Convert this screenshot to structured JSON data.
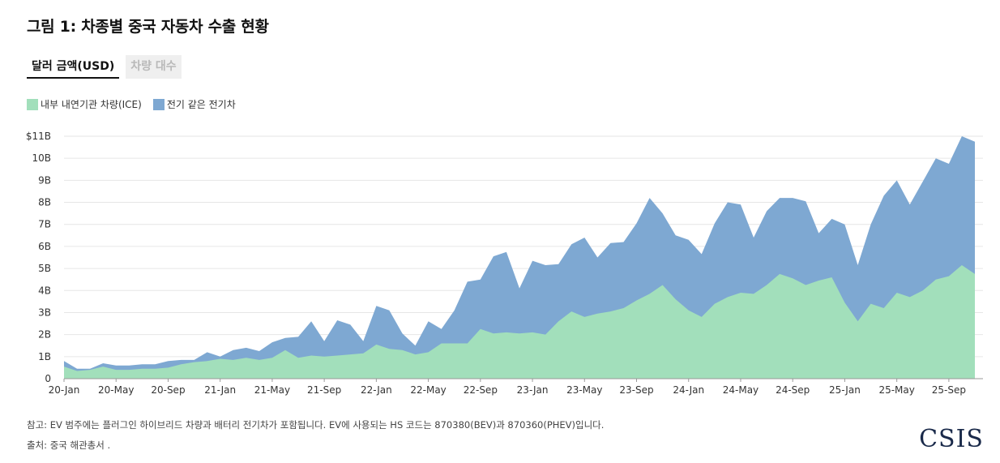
{
  "title": "그림 1: 차종별 중국 자동차 수출 현황",
  "tabs": [
    {
      "label": "달러 금액(USD)",
      "active": true
    },
    {
      "label": "차량 대수",
      "active": false
    }
  ],
  "legend": [
    {
      "label": "내부 내연기관 차량(ICE)",
      "color": "#a2dfbb"
    },
    {
      "label": "전기 같은 전기차",
      "color": "#7ea8d2"
    }
  ],
  "notes": {
    "note": "참고: EV 범주에는 플러그인 하이브리드 차량과 배터리 전기차가 포함됩니다. EV에 사용되는 HS 코드는 870380(BEV)과 870360(PHEV)입니다.",
    "source": "출처: 중국 해관총서 ."
  },
  "logo": "CSIS",
  "chart_data": {
    "type": "area",
    "stacked": true,
    "ylim": [
      0,
      11
    ],
    "yticks": [
      "0",
      "1B",
      "2B",
      "3B",
      "4B",
      "5B",
      "6B",
      "7B",
      "8B",
      "9B",
      "10B",
      "$11B"
    ],
    "xtick_labels": [
      "20-Jan",
      "20-May",
      "20-Sep",
      "21-Jan",
      "21-May",
      "21-Sep",
      "22-Jan",
      "22-May",
      "22-Sep",
      "23-Jan",
      "23-May",
      "23-Sep",
      "24-Jan",
      "24-May",
      "24-Sep",
      "25-Jan",
      "25-May",
      "25-Sep"
    ],
    "x": [
      "2020-01",
      "2020-02",
      "2020-03",
      "2020-04",
      "2020-05",
      "2020-06",
      "2020-07",
      "2020-08",
      "2020-09",
      "2020-10",
      "2020-11",
      "2020-12",
      "2021-01",
      "2021-02",
      "2021-03",
      "2021-04",
      "2021-05",
      "2021-06",
      "2021-07",
      "2021-08",
      "2021-09",
      "2021-10",
      "2021-11",
      "2021-12",
      "2022-01",
      "2022-02",
      "2022-03",
      "2022-04",
      "2022-05",
      "2022-06",
      "2022-07",
      "2022-08",
      "2022-09",
      "2022-10",
      "2022-11",
      "2022-12",
      "2023-01",
      "2023-02",
      "2023-03",
      "2023-04",
      "2023-05",
      "2023-06",
      "2023-07",
      "2023-08",
      "2023-09",
      "2023-10",
      "2023-11",
      "2023-12",
      "2024-01",
      "2024-02",
      "2024-03",
      "2024-04",
      "2024-05",
      "2024-06",
      "2024-07",
      "2024-08",
      "2024-09",
      "2024-10",
      "2024-11",
      "2024-12",
      "2025-01",
      "2025-02",
      "2025-03",
      "2025-04",
      "2025-05",
      "2025-06",
      "2025-07",
      "2025-08",
      "2025-09",
      "2025-10",
      "2025-11"
    ],
    "series": [
      {
        "name": "내부 내연기관 차량(ICE)",
        "values": [
          0.55,
          0.35,
          0.4,
          0.55,
          0.4,
          0.4,
          0.45,
          0.45,
          0.5,
          0.65,
          0.75,
          0.8,
          0.9,
          0.85,
          0.95,
          0.85,
          0.95,
          1.3,
          0.95,
          1.05,
          1.0,
          1.05,
          1.1,
          1.15,
          1.55,
          1.35,
          1.3,
          1.1,
          1.2,
          1.6,
          1.6,
          1.6,
          2.25,
          2.05,
          2.1,
          2.05,
          2.1,
          2.0,
          2.6,
          3.05,
          2.8,
          2.95,
          3.05,
          3.2,
          3.55,
          3.85,
          4.25,
          3.6,
          3.1,
          2.8,
          3.4,
          3.7,
          3.9,
          3.85,
          4.25,
          4.75,
          4.55,
          4.25,
          4.45,
          4.6,
          3.45,
          2.6,
          3.4,
          3.2,
          3.9,
          3.7,
          4.0,
          4.5,
          4.65,
          5.15,
          4.75
        ]
      },
      {
        "name": "전기 같은 전기차",
        "values": [
          0.25,
          0.1,
          0.05,
          0.15,
          0.2,
          0.2,
          0.2,
          0.2,
          0.3,
          0.2,
          0.1,
          0.4,
          0.1,
          0.45,
          0.45,
          0.4,
          0.7,
          0.55,
          0.95,
          1.55,
          0.7,
          1.6,
          1.35,
          0.55,
          1.75,
          1.75,
          0.75,
          0.4,
          1.4,
          0.65,
          1.5,
          2.8,
          2.25,
          3.5,
          3.65,
          2.05,
          3.25,
          3.15,
          2.6,
          3.05,
          3.6,
          2.55,
          3.1,
          3.0,
          3.5,
          4.35,
          3.25,
          2.9,
          3.2,
          2.85,
          3.65,
          4.3,
          4.0,
          2.55,
          3.35,
          3.45,
          3.65,
          3.8,
          2.15,
          2.65,
          3.55,
          2.55,
          3.6,
          5.1,
          5.1,
          4.2,
          4.95,
          5.5,
          5.1,
          5.85,
          6.0
        ]
      }
    ]
  }
}
